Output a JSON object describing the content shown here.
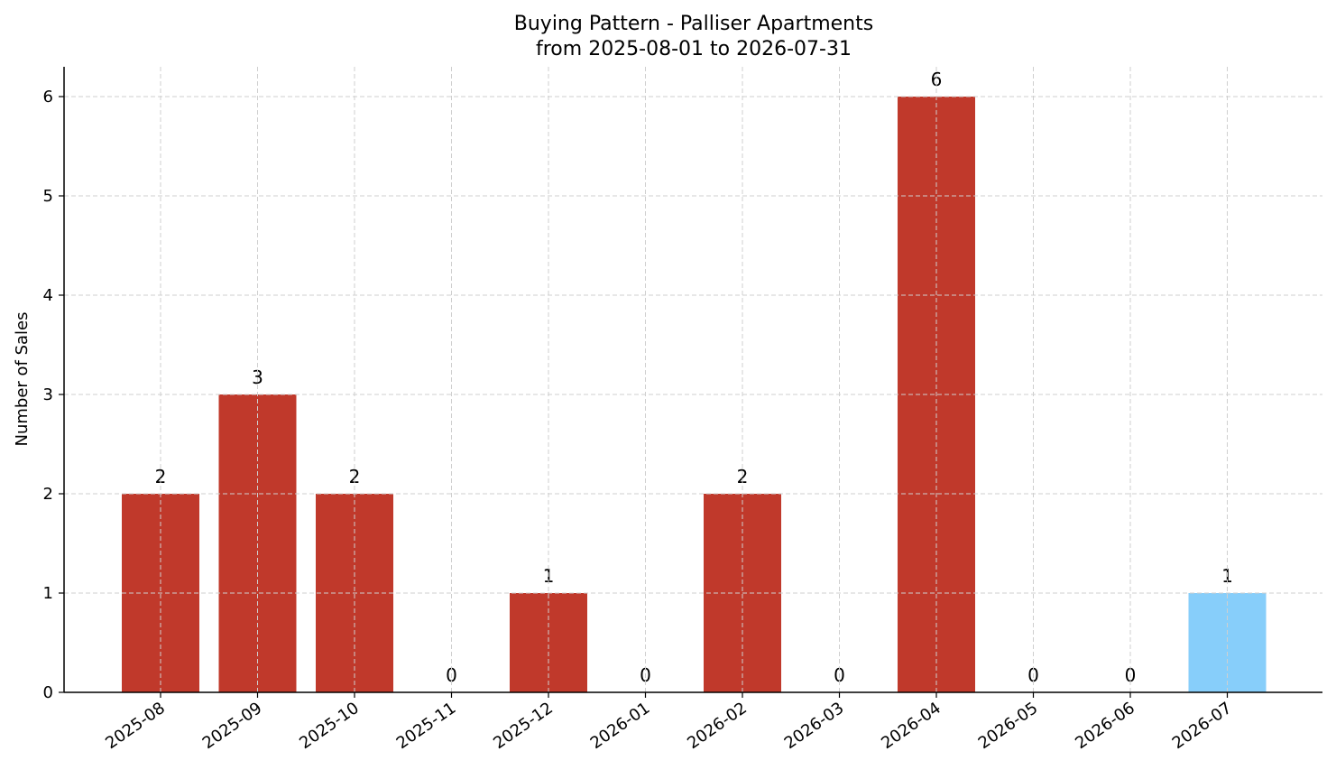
{
  "chart_data": {
    "type": "bar",
    "title": "Buying Pattern - Palliser Apartments",
    "subtitle": "from 2025-08-01 to 2026-07-31",
    "xlabel": "",
    "ylabel": "Number of Sales",
    "categories": [
      "2025-08",
      "2025-09",
      "2025-10",
      "2025-11",
      "2025-12",
      "2026-01",
      "2026-02",
      "2026-03",
      "2026-04",
      "2026-05",
      "2026-06",
      "2026-07"
    ],
    "values": [
      2,
      3,
      2,
      0,
      1,
      0,
      2,
      0,
      6,
      0,
      0,
      1
    ],
    "ylim": [
      0,
      6.3
    ],
    "yticks": [
      0,
      1,
      2,
      3,
      4,
      5,
      6
    ],
    "grid": true,
    "bar_color": "#c0392b",
    "highlight_color": "#87cefa",
    "highlight_index": 11
  }
}
